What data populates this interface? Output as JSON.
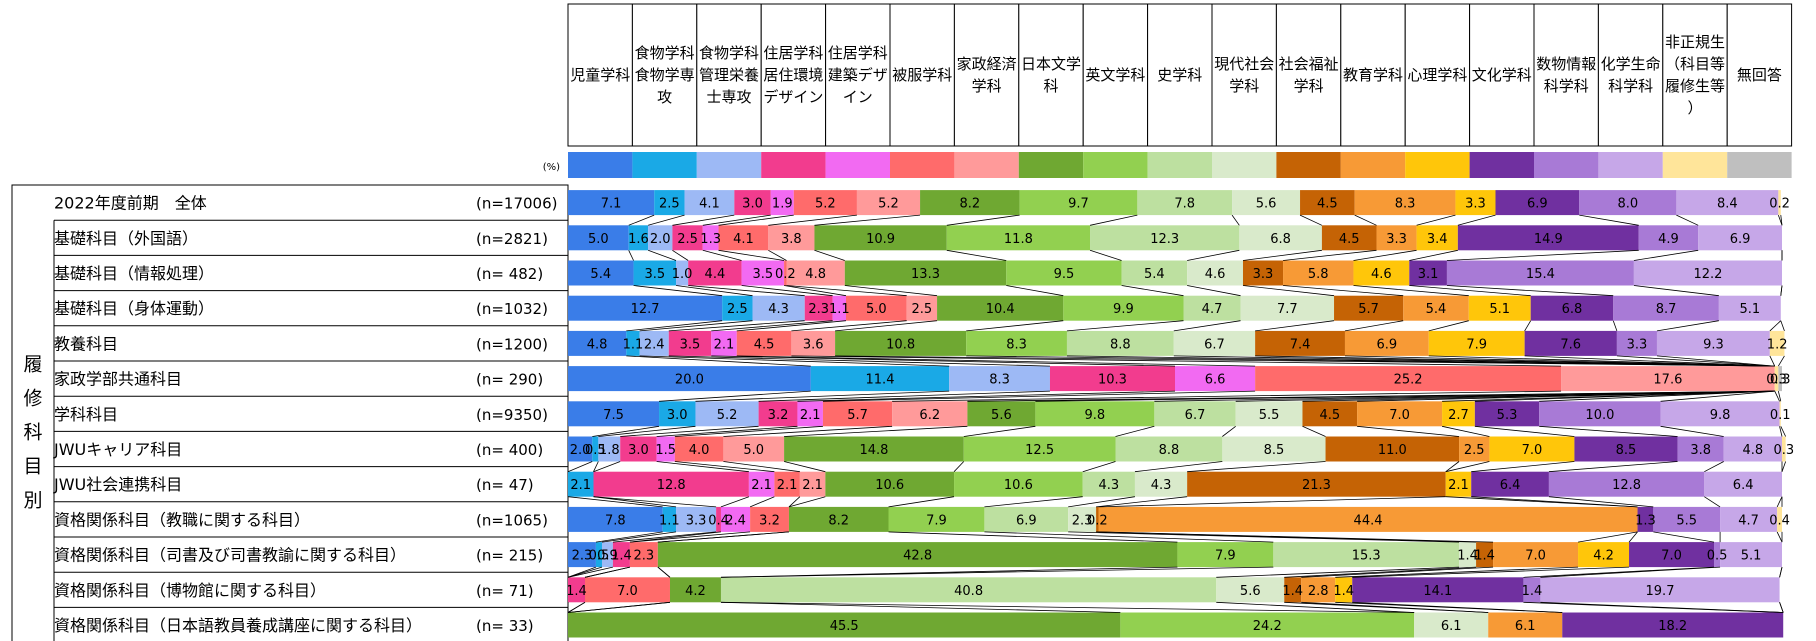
{
  "chart_data": {
    "type": "bar",
    "stacked": true,
    "percent_stacked": true,
    "unit_label": "(%)",
    "columns": [
      {
        "label": "児童学科",
        "color": "#3A7DE8"
      },
      {
        "label": "食物学科 食物学専攻",
        "color": "#1AA9E6"
      },
      {
        "label": "食物学科 管理栄養士専攻",
        "color": "#9DB9F5"
      },
      {
        "label": "住居学科 居住環境デザイン",
        "color": "#F23C8E"
      },
      {
        "label": "住居学科 建築デザイン",
        "color": "#F26AF2"
      },
      {
        "label": "被服学科",
        "color": "#FF6B6B"
      },
      {
        "label": "家政経済学科",
        "color": "#FF9A9A"
      },
      {
        "label": "日本文学科",
        "color": "#6FA832"
      },
      {
        "label": "英文学科",
        "color": "#92D050"
      },
      {
        "label": "史学科",
        "color": "#BDE0A0"
      },
      {
        "label": "現代社会学科",
        "color": "#D9EACB"
      },
      {
        "label": "社会福祉学科",
        "color": "#C56305"
      },
      {
        "label": "教育学科",
        "color": "#F79A36"
      },
      {
        "label": "心理学科",
        "color": "#FFC60A"
      },
      {
        "label": "文化学科",
        "color": "#7030A0"
      },
      {
        "label": "数物情報科学科",
        "color": "#A87AD6"
      },
      {
        "label": "化学生命科学科",
        "color": "#C6A7E8"
      },
      {
        "label": "非正規生（科目等履修生等）",
        "color": "#FFE59A"
      },
      {
        "label": "無回答",
        "color": "#BFBFBF"
      }
    ],
    "group_label": "履修科目別",
    "rows": [
      {
        "label": "2022年度前期　全体",
        "n": "(n=17006)",
        "values": [
          7.1,
          2.5,
          4.1,
          3.0,
          1.9,
          5.2,
          5.2,
          8.2,
          9.7,
          7.8,
          5.6,
          4.5,
          8.3,
          3.3,
          6.9,
          8.0,
          8.4,
          0.2,
          0
        ]
      },
      {
        "label": "基礎科目（外国語）",
        "n": "(n=2821)",
        "values": [
          5.0,
          1.6,
          2.0,
          2.5,
          1.3,
          4.1,
          3.8,
          10.9,
          11.8,
          12.3,
          6.8,
          4.5,
          3.3,
          3.4,
          14.9,
          4.9,
          6.9,
          0,
          0
        ]
      },
      {
        "label": "基礎科目（情報処理）",
        "n": "(n=  482)",
        "values": [
          5.4,
          3.5,
          1.0,
          4.4,
          3.5,
          0.2,
          4.8,
          13.3,
          9.5,
          5.4,
          4.6,
          3.3,
          5.8,
          4.6,
          3.1,
          15.4,
          12.2,
          0,
          0
        ]
      },
      {
        "label": "基礎科目（身体運動）",
        "n": "(n=1032)",
        "values": [
          12.7,
          2.5,
          4.3,
          2.3,
          1.1,
          5.0,
          2.5,
          10.4,
          9.9,
          4.7,
          7.7,
          5.7,
          5.4,
          5.1,
          6.8,
          8.7,
          5.1,
          0,
          0
        ]
      },
      {
        "label": "教養科目",
        "n": "(n=1200)",
        "values": [
          4.8,
          1.1,
          2.4,
          3.5,
          2.1,
          4.5,
          3.6,
          10.8,
          8.3,
          8.8,
          6.7,
          7.4,
          6.9,
          7.9,
          7.6,
          3.3,
          9.3,
          1.2,
          0
        ]
      },
      {
        "label": "家政学部共通科目",
        "n": "(n=  290)",
        "values": [
          20.0,
          11.4,
          8.3,
          10.3,
          6.6,
          25.2,
          17.6,
          0,
          0,
          0,
          0,
          0,
          0,
          0,
          0,
          0,
          0,
          0.3,
          0.3
        ]
      },
      {
        "label": "学科科目",
        "n": "(n=9350)",
        "values": [
          7.5,
          3.0,
          5.2,
          3.2,
          2.1,
          5.7,
          6.2,
          5.6,
          9.8,
          6.7,
          5.5,
          4.5,
          7.0,
          2.7,
          5.3,
          10.0,
          9.8,
          0.1,
          0
        ]
      },
      {
        "label": "JWUキャリア科目",
        "n": "(n=  400)",
        "values": [
          2.0,
          0.5,
          1.8,
          3.0,
          1.5,
          4.0,
          5.0,
          14.8,
          12.5,
          8.8,
          8.5,
          11.0,
          2.5,
          7.0,
          8.5,
          3.8,
          4.8,
          0.3,
          0
        ]
      },
      {
        "label": "JWU社会連携科目",
        "n": "(n=   47)",
        "values": [
          0,
          2.1,
          0,
          12.8,
          2.1,
          2.1,
          2.1,
          10.6,
          10.6,
          4.3,
          4.3,
          21.3,
          0,
          2.1,
          6.4,
          12.8,
          6.4,
          0,
          0
        ]
      },
      {
        "label": "資格関係科目（教職に関する科目）",
        "n": "(n=1065)",
        "values": [
          7.8,
          1.1,
          3.3,
          0.4,
          2.4,
          3.2,
          0,
          8.2,
          7.9,
          6.9,
          2.3,
          0.2,
          44.4,
          0,
          1.3,
          5.5,
          4.7,
          0.4,
          0
        ]
      },
      {
        "label": "資格関係科目（司書及び司書教諭に関する科目）",
        "n": "(n=  215)",
        "values": [
          2.3,
          0.5,
          0.9,
          1.4,
          0,
          2.3,
          0,
          42.8,
          7.9,
          15.3,
          1.4,
          1.4,
          7.0,
          4.2,
          7.0,
          0.5,
          5.1,
          0,
          0
        ]
      },
      {
        "label": "資格関係科目（博物館に関する科目）",
        "n": "(n=   71)",
        "values": [
          0,
          0,
          0,
          1.4,
          0,
          7.0,
          0,
          4.2,
          0,
          40.8,
          5.6,
          1.4,
          2.8,
          1.4,
          14.1,
          1.4,
          19.7,
          0,
          0
        ]
      },
      {
        "label": "資格関係科目（日本語教員養成講座に関する科目）",
        "n": "(n=   33)",
        "values": [
          0,
          0,
          0,
          0,
          0,
          0,
          0,
          45.5,
          24.2,
          0,
          6.1,
          0,
          6.1,
          0,
          18.2,
          0,
          0,
          0,
          0
        ]
      }
    ]
  }
}
